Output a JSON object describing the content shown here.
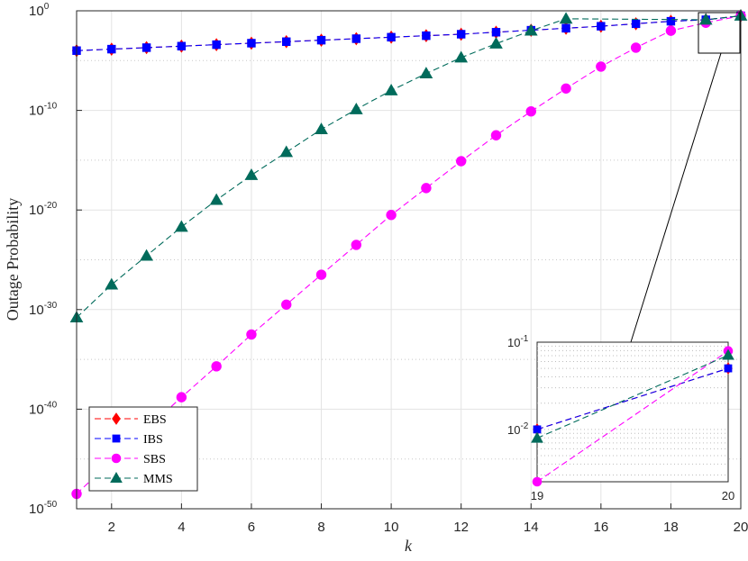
{
  "chart_data": {
    "type": "line",
    "xlabel": "k",
    "ylabel": "Outage Probability",
    "xlim": [
      1,
      20
    ],
    "ylim_exponent": [
      -50,
      0
    ],
    "yscale": "log",
    "x_ticks": [
      2,
      4,
      6,
      8,
      10,
      12,
      14,
      16,
      18,
      20
    ],
    "y_ticks": [
      {
        "base": "10",
        "exp": "-50"
      },
      {
        "base": "10",
        "exp": "-40"
      },
      {
        "base": "10",
        "exp": "-30"
      },
      {
        "base": "10",
        "exp": "-20"
      },
      {
        "base": "10",
        "exp": "-10"
      },
      {
        "base": "10",
        "exp": "0"
      }
    ],
    "grid": true,
    "legend_position": "bottom-left",
    "x": [
      1,
      2,
      3,
      4,
      5,
      6,
      7,
      8,
      9,
      10,
      11,
      12,
      13,
      14,
      15,
      16,
      17,
      18,
      19,
      20
    ],
    "series": [
      {
        "name": "EBS",
        "color": "#ff0000",
        "marker": "diamond",
        "log10_values": [
          -4.0,
          -3.85,
          -3.7,
          -3.55,
          -3.4,
          -3.25,
          -3.1,
          -2.95,
          -2.8,
          -2.65,
          -2.5,
          -2.35,
          -2.15,
          -1.95,
          -1.75,
          -1.55,
          -1.3,
          -1.05,
          -2.0,
          -1.3
        ]
      },
      {
        "name": "IBS",
        "color": "#0000ff",
        "marker": "square",
        "log10_values": [
          -4.0,
          -3.85,
          -3.7,
          -3.55,
          -3.4,
          -3.25,
          -3.1,
          -2.95,
          -2.8,
          -2.65,
          -2.5,
          -2.35,
          -2.15,
          -1.95,
          -1.75,
          -1.55,
          -1.3,
          -1.05,
          -2.0,
          -1.3
        ]
      },
      {
        "name": "SBS",
        "color": "#ff00ff",
        "marker": "circle",
        "log10_values": [
          -48.5,
          -45.2,
          -42.0,
          -38.8,
          -35.7,
          -32.5,
          -29.5,
          -26.5,
          -23.5,
          -20.5,
          -17.8,
          -15.1,
          -12.5,
          -10.1,
          -7.8,
          -5.6,
          -3.7,
          -2.0,
          -2.6,
          -1.1
        ]
      },
      {
        "name": "MMS",
        "color": "#006b5b",
        "marker": "triangle",
        "log10_values": [
          -30.8,
          -27.5,
          -24.6,
          -21.7,
          -19.0,
          -16.5,
          -14.2,
          -11.9,
          -9.9,
          -8.0,
          -6.3,
          -4.7,
          -3.3,
          -2.0,
          -0.8,
          0.3,
          1.3,
          2.1,
          -2.1,
          -1.15
        ]
      }
    ],
    "inset": {
      "xlim": [
        19,
        20
      ],
      "x_ticks": [
        "19",
        "20"
      ],
      "y_ticks": [
        {
          "base": "10",
          "exp": "-2"
        },
        {
          "base": "10",
          "exp": "-1"
        }
      ],
      "ylim_exponent": [
        -2.6,
        -1.0
      ],
      "log10_values_19": [
        -2.0,
        -2.0,
        -2.6,
        -2.1
      ],
      "log10_values_20": [
        -1.3,
        -1.3,
        -1.1,
        -1.15
      ]
    }
  }
}
